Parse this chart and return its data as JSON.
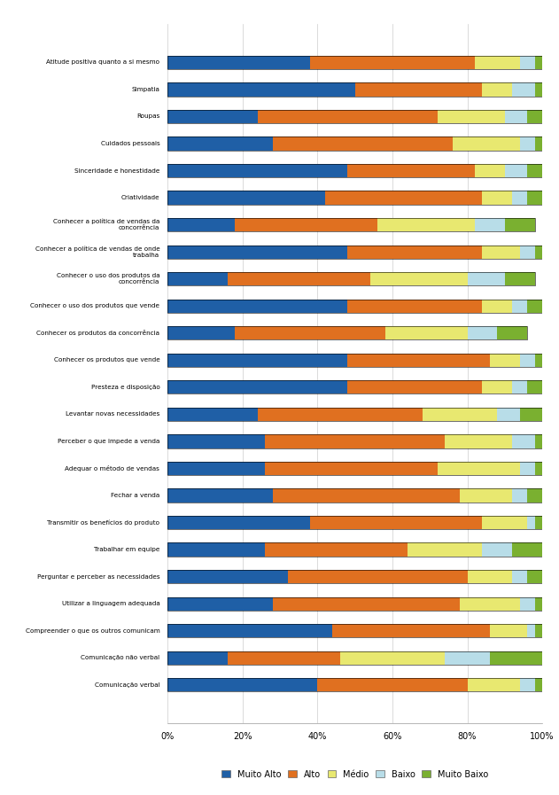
{
  "categories": [
    "Atitude positiva quanto a si mesmo",
    "Simpatia",
    "Roupas",
    "Cuidados pessoais",
    "Sinceridade e honestidade",
    "Criatividade",
    "Conhecer a política de vendas da\nconcorrência",
    "Conhecer a política de vendas de onde\ntrabalha",
    "Conhecer o uso dos produtos da\nconcorrência",
    "Conhecer o uso dos produtos que vende",
    "Conhecer os produtos da concorrência",
    "Conhecer os produtos que vende",
    "Presteza e disposição",
    "Levantar novas necessidades",
    "Perceber o que impede a venda",
    "Adequar o método de vendas",
    "Fechar a venda",
    "Transmitir os benefícios do produto",
    "Trabalhar em equipe",
    "Perguntar e perceber as necessidades",
    "Utilizar a linguagem adequada",
    "Compreender o que os outros comunicam",
    "Comunicação não verbal",
    "Comunicação verbal"
  ],
  "muito_alto": [
    38,
    50,
    24,
    28,
    48,
    42,
    18,
    48,
    16,
    48,
    18,
    48,
    48,
    24,
    26,
    26,
    28,
    38,
    26,
    32,
    28,
    44,
    16,
    40
  ],
  "alto": [
    44,
    34,
    48,
    48,
    34,
    42,
    38,
    36,
    38,
    36,
    40,
    38,
    36,
    44,
    48,
    46,
    50,
    46,
    38,
    48,
    50,
    42,
    30,
    40
  ],
  "medio": [
    12,
    8,
    18,
    18,
    8,
    8,
    26,
    10,
    26,
    8,
    22,
    8,
    8,
    20,
    18,
    22,
    14,
    12,
    20,
    12,
    16,
    10,
    28,
    14
  ],
  "baixo": [
    4,
    6,
    6,
    4,
    6,
    4,
    8,
    4,
    10,
    4,
    8,
    4,
    4,
    6,
    6,
    4,
    4,
    2,
    8,
    4,
    4,
    2,
    12,
    4
  ],
  "muito_baixo": [
    2,
    2,
    4,
    2,
    4,
    4,
    8,
    2,
    8,
    4,
    8,
    2,
    4,
    6,
    2,
    2,
    4,
    2,
    8,
    4,
    2,
    2,
    14,
    2
  ],
  "colors": {
    "muito_alto": "#1f5fa6",
    "alto": "#e07020",
    "medio": "#e8e870",
    "baixo": "#b8dde8",
    "muito_baixo": "#7ab030"
  },
  "legend_labels": [
    "Muito Alto",
    "Alto",
    "Médio",
    "Baixo",
    "Muito Baixo"
  ],
  "background_color": "#ffffff"
}
